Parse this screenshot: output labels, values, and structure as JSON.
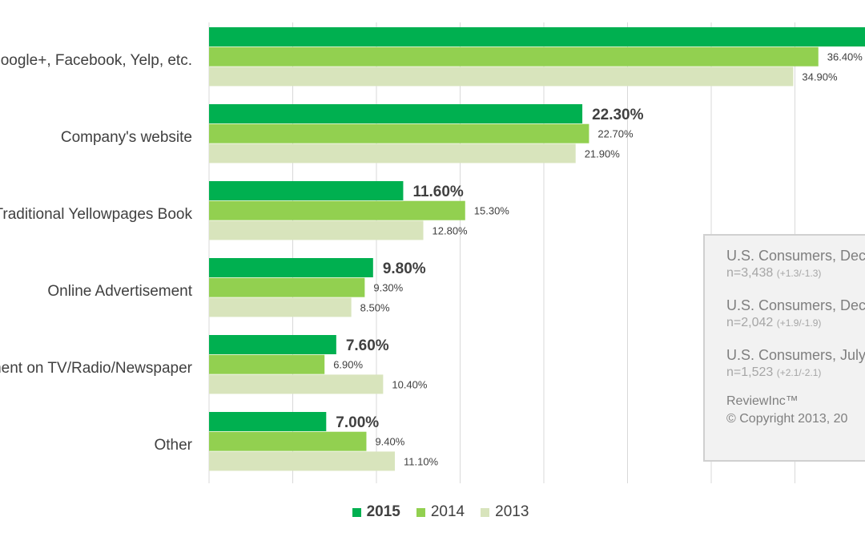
{
  "chart_data": {
    "type": "bar",
    "orientation": "horizontal",
    "categories": [
      "Google+, Facebook, Yelp, etc.",
      "Company's website",
      "Traditional Yellowpages Book",
      "Online Advertisement",
      "Advertisement on TV/Radio/Newspaper",
      "Other"
    ],
    "series": [
      {
        "name": "2015",
        "values": [
          null,
          22.3,
          11.6,
          9.8,
          7.6,
          7.0
        ],
        "labels": [
          "",
          "22.30%",
          "11.60%",
          "9.80%",
          "7.60%",
          "7.00%"
        ]
      },
      {
        "name": "2014",
        "values": [
          36.4,
          22.7,
          15.3,
          9.3,
          6.9,
          9.4
        ],
        "labels": [
          "36.40%",
          "22.70%",
          "15.30%",
          "9.30%",
          "6.90%",
          "9.40%"
        ]
      },
      {
        "name": "2013",
        "values": [
          34.9,
          21.9,
          12.8,
          8.5,
          10.4,
          11.1
        ],
        "labels": [
          "34.90%",
          "21.90%",
          "12.80%",
          "8.50%",
          "10.40%",
          "11.10%"
        ]
      }
    ],
    "xlim": [
      0,
      40
    ],
    "grid": true,
    "legend": "bottom",
    "colors": {
      "2015": "#00b050",
      "2014": "#92d050",
      "2013": "#d8e4bc"
    }
  },
  "infobox": {
    "lines": [
      {
        "title": "U.S. Consumers, Dec",
        "n": "n=3,438",
        "moe": "(+1.3/-1.3)"
      },
      {
        "title": "U.S. Consumers, Dec",
        "n": "n=2,042",
        "moe": "(+1.9/-1.9)"
      },
      {
        "title": "U.S. Consumers, July",
        "n": "n=1,523",
        "moe": "(+2.1/-2.1)"
      }
    ],
    "brand": "ReviewInc™",
    "copyright": "© Copyright 2013, 20"
  },
  "legend": [
    {
      "label": "2015",
      "color": "#00b050"
    },
    {
      "label": "2014",
      "color": "#92d050"
    },
    {
      "label": "2013",
      "color": "#d8e4bc"
    }
  ]
}
